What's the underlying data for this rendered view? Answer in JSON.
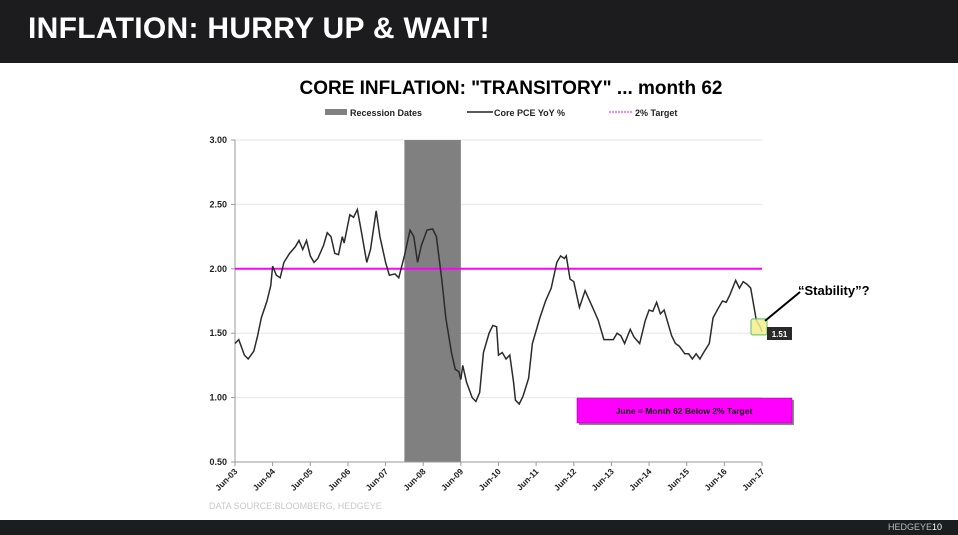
{
  "slide": {
    "title": "INFLATION: HURRY UP & WAIT!",
    "footer_brand": "HEDGEYE",
    "page_number": "10",
    "source": "DATA SOURCE:BLOOMBERG, HEDGEYE"
  },
  "colors": {
    "line": "#2b2b2b",
    "target": "#ff00ff",
    "recession": "#808080",
    "callout": "#ff00ff",
    "highlight": "#f3f08f"
  },
  "chart_data": {
    "type": "line",
    "title": "CORE INFLATION: \"TRANSITORY\" ... month 62",
    "legend": [
      "Recession Dates",
      "Core PCE YoY %",
      "2% Target"
    ],
    "legend_placement": "top",
    "xlabel": "",
    "ylabel": "",
    "ylim": [
      0.5,
      3.0
    ],
    "yticks": [
      "0.50",
      "1.00",
      "1.50",
      "2.00",
      "2.50",
      "3.00"
    ],
    "xticks": [
      "Jun-03",
      "Jun-04",
      "Jun-05",
      "Jun-06",
      "Jun-07",
      "Jun-08",
      "Jun-09",
      "Jun-10",
      "Jun-11",
      "Jun-12",
      "Jun-13",
      "Jun-14",
      "Jun-15",
      "Jun-16",
      "Jun-17"
    ],
    "x_unit": "years since Jun-03",
    "recession": [
      4.5,
      6.0
    ],
    "target": 2.0,
    "series": [
      {
        "name": "Core PCE YoY %",
        "x": [
          0,
          0.1,
          0.25,
          0.35,
          0.5,
          0.6,
          0.7,
          0.85,
          0.95,
          1.0,
          1.1,
          1.2,
          1.3,
          1.45,
          1.6,
          1.7,
          1.8,
          1.9,
          2.0,
          2.1,
          2.2,
          2.35,
          2.45,
          2.55,
          2.65,
          2.75,
          2.85,
          2.9,
          3.05,
          3.15,
          3.25,
          3.35,
          3.5,
          3.6,
          3.75,
          3.85,
          4.0,
          4.1,
          4.25,
          4.35,
          4.5,
          4.65,
          4.75,
          4.85,
          4.95,
          5.1,
          5.25,
          5.35,
          5.5,
          5.6,
          5.75,
          5.85,
          5.95,
          6.0,
          6.05,
          6.15,
          6.3,
          6.4,
          6.5,
          6.6,
          6.75,
          6.85,
          6.95,
          7.0,
          7.1,
          7.2,
          7.3,
          7.4,
          7.45,
          7.55,
          7.65,
          7.8,
          7.9,
          8.1,
          8.25,
          8.4,
          8.55,
          8.65,
          8.75,
          8.8,
          8.9,
          9.0,
          9.15,
          9.3,
          9.5,
          9.65,
          9.8,
          9.95,
          10.05,
          10.15,
          10.25,
          10.35,
          10.5,
          10.6,
          10.75,
          10.9,
          11.0,
          11.1,
          11.2,
          11.3,
          11.4,
          11.6,
          11.7,
          11.8,
          11.95,
          12.05,
          12.15,
          12.25,
          12.35,
          12.45,
          12.6,
          12.7,
          12.85,
          12.95,
          13.05,
          13.15,
          13.3,
          13.4,
          13.5,
          13.6,
          13.7,
          13.85,
          13.95,
          14.0
        ],
        "values": [
          1.42,
          1.45,
          1.33,
          1.3,
          1.36,
          1.48,
          1.62,
          1.75,
          1.87,
          2.02,
          1.95,
          1.93,
          2.05,
          2.12,
          2.17,
          2.22,
          2.15,
          2.22,
          2.1,
          2.05,
          2.08,
          2.18,
          2.28,
          2.25,
          2.12,
          2.11,
          2.25,
          2.2,
          2.42,
          2.4,
          2.46,
          2.3,
          2.05,
          2.15,
          2.45,
          2.25,
          2.05,
          1.95,
          1.96,
          1.93,
          2.1,
          2.3,
          2.25,
          2.05,
          2.18,
          2.3,
          2.31,
          2.25,
          1.9,
          1.62,
          1.35,
          1.22,
          1.2,
          1.14,
          1.25,
          1.12,
          1.0,
          0.97,
          1.04,
          1.35,
          1.5,
          1.56,
          1.55,
          1.33,
          1.35,
          1.3,
          1.33,
          1.12,
          0.98,
          0.95,
          1.01,
          1.15,
          1.42,
          1.62,
          1.75,
          1.85,
          2.05,
          2.1,
          2.08,
          2.1,
          1.92,
          1.9,
          1.7,
          1.83,
          1.7,
          1.6,
          1.45,
          1.45,
          1.45,
          1.5,
          1.48,
          1.42,
          1.53,
          1.47,
          1.42,
          1.6,
          1.68,
          1.67,
          1.74,
          1.65,
          1.68,
          1.48,
          1.42,
          1.4,
          1.34,
          1.34,
          1.3,
          1.34,
          1.3,
          1.35,
          1.42,
          1.62,
          1.7,
          1.75,
          1.74,
          1.8,
          1.91,
          1.85,
          1.9,
          1.88,
          1.85,
          1.6,
          1.55,
          1.51
        ]
      }
    ],
    "annotations": {
      "last_value": "1.51",
      "comment": "“Stability”?",
      "callout": "June = Month 62 Below 2% Target"
    }
  }
}
